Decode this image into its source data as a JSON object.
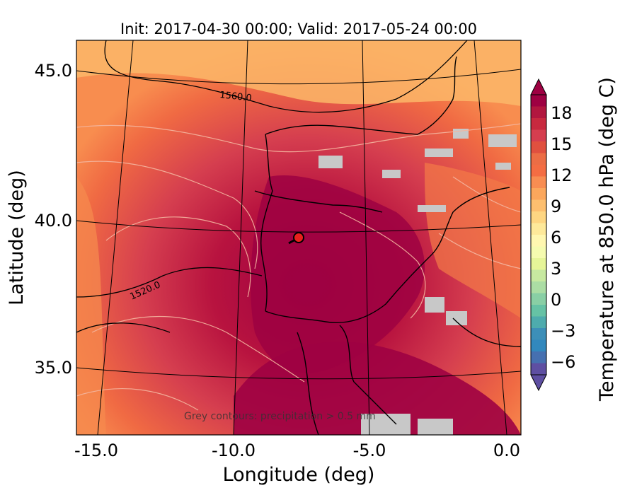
{
  "title": "Init: 2017-04-30 00:00; Valid: 2017-05-24 00:00",
  "axes": {
    "xlabel": "Longitude (deg)",
    "ylabel": "Latitude (deg)",
    "x_ticks": [
      {
        "value": -15,
        "label": "-15.0"
      },
      {
        "value": -10,
        "label": "-10.0"
      },
      {
        "value": -5,
        "label": "-5.0"
      },
      {
        "value": 0,
        "label": "0.0"
      }
    ],
    "y_ticks": [
      {
        "value": 35,
        "label": "35.0"
      },
      {
        "value": 40,
        "label": "40.0"
      },
      {
        "value": 45,
        "label": "45.0"
      }
    ]
  },
  "contour_labels": [
    {
      "label": "1560.0"
    },
    {
      "label": "1520.0"
    }
  ],
  "note": "Grey contours: precipitation > 0.5 mm",
  "marker": {
    "lon": -7.6,
    "lat": 39.4,
    "color": "#e8211c"
  },
  "colorbar": {
    "label": "Temperature at 850.0 hPa (deg C)",
    "ticks": [
      "18",
      "15",
      "12",
      "9",
      "6",
      "3",
      "0",
      "−3",
      "−6"
    ],
    "top_color": "#9e0142",
    "bottom_color": "#5e4fa2"
  }
}
